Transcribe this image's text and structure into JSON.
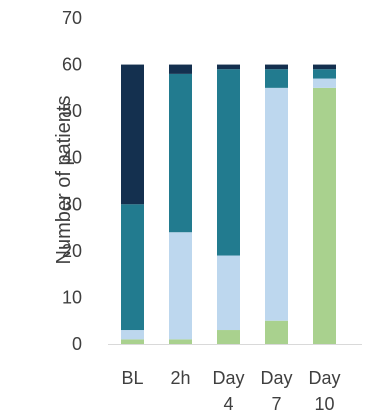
{
  "chart_data": {
    "type": "bar",
    "stacked": true,
    "categories": [
      [
        "BL"
      ],
      [
        "2h"
      ],
      [
        "Day",
        "4"
      ],
      [
        "Day",
        "7"
      ],
      [
        "Day",
        "10"
      ]
    ],
    "ylabel": "Number  of patients",
    "xlabel": "",
    "ylim": [
      0,
      70
    ],
    "yticks": [
      0,
      10,
      20,
      30,
      40,
      50,
      60,
      70
    ],
    "grid": false,
    "legend": "none",
    "series": [
      {
        "color": "#a9d18e",
        "values": [
          1,
          1,
          3,
          5,
          55
        ]
      },
      {
        "color": "#bdd7ee",
        "values": [
          2,
          23,
          16,
          50,
          2
        ]
      },
      {
        "color": "#227b8f",
        "values": [
          27,
          34,
          40,
          4,
          2
        ]
      },
      {
        "color": "#14304f",
        "values": [
          30,
          2,
          1,
          1,
          1
        ]
      }
    ]
  }
}
